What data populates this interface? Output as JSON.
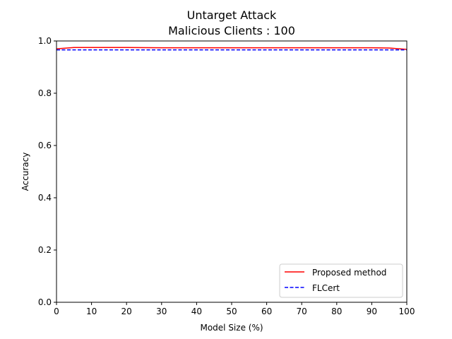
{
  "chart_data": {
    "type": "line",
    "title": "Untarget Attack",
    "subtitle": "Malicious Clients : 100",
    "xlabel": "Model Size (%)",
    "ylabel": "Accuracy",
    "xlim": [
      0,
      100
    ],
    "ylim": [
      0.0,
      1.0
    ],
    "x_ticks": [
      "0",
      "10",
      "20",
      "30",
      "40",
      "50",
      "60",
      "70",
      "80",
      "90",
      "100"
    ],
    "y_ticks": [
      "0.0",
      "0.2",
      "0.4",
      "0.6",
      "0.8",
      "1.0"
    ],
    "grid": false,
    "legend_position": "lower-right",
    "series": [
      {
        "name": "Proposed method",
        "color": "#ff0000",
        "style": "solid",
        "x": [
          0,
          5,
          10,
          20,
          30,
          40,
          50,
          60,
          70,
          80,
          90,
          95,
          100
        ],
        "y": [
          0.97,
          0.975,
          0.975,
          0.975,
          0.974,
          0.974,
          0.974,
          0.974,
          0.974,
          0.974,
          0.974,
          0.973,
          0.968
        ]
      },
      {
        "name": "FLCert",
        "color": "#0000ff",
        "style": "dashed",
        "x": [
          0,
          10,
          20,
          30,
          40,
          50,
          60,
          70,
          80,
          90,
          100
        ],
        "y": [
          0.966,
          0.966,
          0.966,
          0.966,
          0.966,
          0.966,
          0.966,
          0.966,
          0.966,
          0.966,
          0.966
        ]
      }
    ]
  }
}
